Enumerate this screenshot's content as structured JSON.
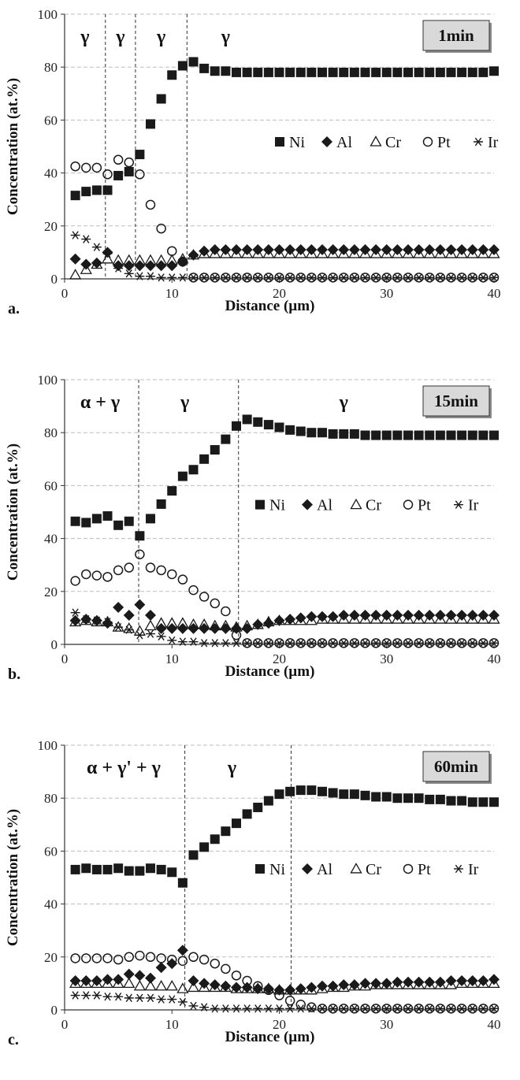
{
  "figure": {
    "series_names": [
      "Ni",
      "Al",
      "Cr",
      "Pt",
      "Ir"
    ],
    "colors": {
      "marker": "#1a1a1a",
      "grid": "#bdbdbd",
      "badge_fill": "#d9d9d9"
    }
  },
  "chart_data": [
    {
      "type": "scatter",
      "panel_label": "a.",
      "badge": "1min",
      "xlabel": "Distance (µm)",
      "ylabel": "Concentration (at.%)",
      "xlim": [
        0,
        40
      ],
      "ylim": [
        0,
        100
      ],
      "xticks": [
        0,
        10,
        20,
        30,
        40
      ],
      "yticks": [
        0,
        20,
        40,
        60,
        80,
        100
      ],
      "grid": "horizontal dashed",
      "legend_position": "right-middle",
      "boundaries": [
        3.8,
        6.6,
        11.4
      ],
      "phase_labels": [
        {
          "text": "γ",
          "x": 1.9
        },
        {
          "text": "γ",
          "x": 5.2
        },
        {
          "text": "γ",
          "x": 9.0
        },
        {
          "text": "γ",
          "x": 15.0
        }
      ],
      "x": [
        1,
        2,
        3,
        4,
        5,
        6,
        7,
        8,
        9,
        10,
        11,
        12,
        13,
        14,
        15,
        16,
        17,
        18,
        19,
        20,
        21,
        22,
        23,
        24,
        25,
        26,
        27,
        28,
        29,
        30,
        31,
        32,
        33,
        34,
        35,
        36,
        37,
        38,
        39,
        40
      ],
      "series": [
        {
          "name": "Ni",
          "marker": "square",
          "values": [
            31.5,
            33,
            33.5,
            33.5,
            39,
            40.5,
            47,
            58.5,
            68,
            77,
            80.5,
            82,
            79.5,
            78.5,
            78.5,
            78,
            78,
            78,
            78,
            78,
            78,
            78,
            78,
            78,
            78,
            78,
            78,
            78,
            78,
            78,
            78,
            78,
            78,
            78,
            78,
            78,
            78,
            78,
            78,
            78.5
          ]
        },
        {
          "name": "Al",
          "marker": "diamond",
          "values": [
            7.5,
            5.5,
            6,
            10,
            5,
            5,
            5,
            5,
            5,
            5,
            6.5,
            9,
            10.5,
            11,
            11,
            11,
            11,
            11,
            11,
            11,
            11,
            11,
            11,
            11,
            11,
            11,
            11,
            11,
            11,
            11,
            11,
            11,
            11,
            11,
            11,
            11,
            11,
            11,
            11,
            11
          ]
        },
        {
          "name": "Cr",
          "marker": "triangle",
          "values": [
            1.5,
            3.5,
            5.5,
            7.5,
            7,
            7,
            7,
            7,
            7,
            7,
            7.5,
            9,
            9.5,
            9.5,
            9.5,
            9.5,
            9.5,
            9.5,
            9.5,
            9.5,
            9.5,
            9.5,
            9.5,
            9.5,
            9.5,
            9.5,
            9.5,
            9.5,
            9.5,
            9.5,
            9.5,
            9.5,
            9.5,
            9.5,
            9.5,
            9.5,
            9.5,
            9.5,
            9.5,
            9.5
          ]
        },
        {
          "name": "Pt",
          "marker": "circle",
          "values": [
            42.5,
            42,
            42,
            39.5,
            45,
            44,
            39.5,
            28,
            19,
            10.5,
            6.5,
            0.5,
            0.5,
            0.5,
            0.5,
            0.5,
            0.5,
            0.5,
            0.5,
            0.5,
            0.5,
            0.5,
            0.5,
            0.5,
            0.5,
            0.5,
            0.5,
            0.5,
            0.5,
            0.5,
            0.5,
            0.5,
            0.5,
            0.5,
            0.5,
            0.5,
            0.5,
            0.5,
            0.5,
            0.5
          ]
        },
        {
          "name": "Ir",
          "marker": "star",
          "values": [
            16.5,
            15,
            12,
            9.5,
            4,
            2,
            1,
            1,
            0.5,
            0.5,
            0.5,
            0.5,
            0.5,
            0.5,
            0.5,
            0.5,
            0.5,
            0.5,
            0.5,
            0.5,
            0.5,
            0.5,
            0.5,
            0.5,
            0.5,
            0.5,
            0.5,
            0.5,
            0.5,
            0.5,
            0.5,
            0.5,
            0.5,
            0.5,
            0.5,
            0.5,
            0.5,
            0.5,
            0.5,
            0.5
          ]
        }
      ]
    },
    {
      "type": "scatter",
      "panel_label": "b.",
      "badge": "15min",
      "xlabel": "Distance (µm)",
      "ylabel": "Concentration (at.%)",
      "xlim": [
        0,
        40
      ],
      "ylim": [
        0,
        100
      ],
      "xticks": [
        0,
        10,
        20,
        30,
        40
      ],
      "yticks": [
        0,
        20,
        40,
        60,
        80,
        100
      ],
      "grid": "horizontal dashed",
      "legend_position": "right-middle",
      "boundaries": [
        6.9,
        16.2
      ],
      "phase_labels": [
        {
          "text": "α + γ",
          "x": 3.3
        },
        {
          "text": "γ",
          "x": 11.2
        },
        {
          "text": "γ",
          "x": 26.0
        }
      ],
      "x": [
        1,
        2,
        3,
        4,
        5,
        6,
        7,
        8,
        9,
        10,
        11,
        12,
        13,
        14,
        15,
        16,
        17,
        18,
        19,
        20,
        21,
        22,
        23,
        24,
        25,
        26,
        27,
        28,
        29,
        30,
        31,
        32,
        33,
        34,
        35,
        36,
        37,
        38,
        39,
        40
      ],
      "series": [
        {
          "name": "Ni",
          "marker": "square",
          "values": [
            46.5,
            46,
            47.5,
            48.5,
            45,
            46.5,
            41,
            47.5,
            53,
            58,
            63.5,
            66,
            70,
            73.5,
            77.5,
            82.5,
            85,
            84,
            83,
            82,
            81,
            80.5,
            80,
            80,
            79.5,
            79.5,
            79.5,
            79,
            79,
            79,
            79,
            79,
            79,
            79,
            79,
            79,
            79,
            79,
            79,
            79
          ]
        },
        {
          "name": "Al",
          "marker": "diamond",
          "values": [
            9,
            9.5,
            9,
            8,
            14,
            11,
            15,
            11,
            6,
            6,
            6,
            6,
            6,
            6,
            6,
            6,
            6,
            7.5,
            8,
            9,
            9.5,
            10,
            10.5,
            10.5,
            10.5,
            11,
            11,
            11,
            11,
            11,
            11,
            11,
            11,
            11,
            11,
            11,
            11,
            11,
            11,
            11
          ]
        },
        {
          "name": "Cr",
          "marker": "triangle",
          "values": [
            8.5,
            9,
            8.5,
            8.5,
            6.5,
            6,
            5,
            7,
            8,
            8,
            8,
            7.5,
            7.5,
            7,
            7,
            6.5,
            7,
            7.5,
            8.5,
            9,
            9,
            9,
            9,
            9.5,
            9.5,
            9.5,
            9.5,
            9.5,
            9.5,
            9.5,
            9.5,
            9.5,
            9.5,
            9.5,
            9.5,
            9.5,
            9.5,
            9.5,
            9.5,
            9.5
          ]
        },
        {
          "name": "Pt",
          "marker": "circle",
          "values": [
            24,
            26.5,
            26,
            25.5,
            28,
            29,
            34,
            29,
            28,
            26.5,
            24.5,
            20.5,
            18,
            15.5,
            12.5,
            3.5,
            0.5,
            0.5,
            0.5,
            0.5,
            0.5,
            0.5,
            0.5,
            0.5,
            0.5,
            0.5,
            0.5,
            0.5,
            0.5,
            0.5,
            0.5,
            0.5,
            0.5,
            0.5,
            0.5,
            0.5,
            0.5,
            0.5,
            0.5,
            0.5
          ]
        },
        {
          "name": "Ir",
          "marker": "star",
          "values": [
            12,
            9.5,
            9,
            8.5,
            6.5,
            5.5,
            3.5,
            4,
            3,
            1.5,
            1,
            1,
            0.5,
            0.5,
            0.5,
            0.5,
            0.5,
            0.5,
            0.5,
            0.5,
            0.5,
            0.5,
            0.5,
            0.5,
            0.5,
            0.5,
            0.5,
            0.5,
            0.5,
            0.5,
            0.5,
            0.5,
            0.5,
            0.5,
            0.5,
            0.5,
            0.5,
            0.5,
            0.5,
            0.5
          ]
        }
      ]
    },
    {
      "type": "scatter",
      "panel_label": "c.",
      "badge": "60min",
      "xlabel": "Distance (µm)",
      "ylabel": "Concentration (at.%)",
      "xlim": [
        0,
        40
      ],
      "ylim": [
        0,
        100
      ],
      "xticks": [
        0,
        10,
        20,
        30,
        40
      ],
      "yticks": [
        0,
        20,
        40,
        60,
        80,
        100
      ],
      "grid": "horizontal dashed",
      "legend_position": "right-middle",
      "boundaries": [
        11.2,
        21.1
      ],
      "phase_labels": [
        {
          "text": "α + γ' + γ",
          "x": 5.5
        },
        {
          "text": "γ",
          "x": 15.6
        }
      ],
      "x": [
        1,
        2,
        3,
        4,
        5,
        6,
        7,
        8,
        9,
        10,
        11,
        12,
        13,
        14,
        15,
        16,
        17,
        18,
        19,
        20,
        21,
        22,
        23,
        24,
        25,
        26,
        27,
        28,
        29,
        30,
        31,
        32,
        33,
        34,
        35,
        36,
        37,
        38,
        39,
        40
      ],
      "series": [
        {
          "name": "Ni",
          "marker": "square",
          "values": [
            53,
            53.5,
            53,
            53,
            53.5,
            52.5,
            52.5,
            53.5,
            53,
            52,
            48,
            58.5,
            61.5,
            64.5,
            67.5,
            70.5,
            74,
            76.5,
            79,
            81.5,
            82.5,
            83,
            83,
            82.5,
            82,
            81.5,
            81.5,
            81,
            80.5,
            80.5,
            80,
            80,
            80,
            79.5,
            79.5,
            79,
            79,
            78.5,
            78.5,
            78.5
          ]
        },
        {
          "name": "Al",
          "marker": "diamond",
          "values": [
            11,
            11,
            11,
            11.5,
            11.5,
            13.5,
            13,
            12,
            16,
            17.5,
            22.5,
            11,
            10,
            9.5,
            9,
            8.5,
            8.5,
            8,
            8,
            7.5,
            7.5,
            8,
            8.5,
            9,
            9,
            9.5,
            9.5,
            10,
            10,
            10,
            10.5,
            10.5,
            10.5,
            10.5,
            10.5,
            11,
            11,
            11,
            11,
            11.5
          ]
        },
        {
          "name": "Cr",
          "marker": "triangle",
          "values": [
            10,
            10,
            10,
            10,
            10,
            10,
            9,
            9,
            9,
            9,
            8,
            8.5,
            8.5,
            8.5,
            8.5,
            8,
            8,
            8,
            8,
            7.5,
            7.5,
            7.5,
            7.5,
            8,
            8.5,
            8.5,
            9,
            9,
            9.5,
            9.5,
            9.5,
            9.5,
            9.5,
            9.5,
            9.5,
            9.5,
            10,
            10,
            10,
            10
          ]
        },
        {
          "name": "Pt",
          "marker": "circle",
          "values": [
            19.5,
            19.5,
            19.5,
            19.5,
            19,
            20,
            20.5,
            20,
            19.5,
            19,
            18.5,
            20,
            19,
            17.5,
            15.5,
            13,
            11,
            9,
            7.5,
            5.5,
            3.5,
            2,
            1,
            0.5,
            0.5,
            0.5,
            0.5,
            0.5,
            0.5,
            0.5,
            0.5,
            0.5,
            0.5,
            0.5,
            0.5,
            0.5,
            0.5,
            0.5,
            0.5,
            0.5
          ]
        },
        {
          "name": "Ir",
          "marker": "star",
          "values": [
            5.5,
            5.5,
            5.5,
            5,
            5,
            4.5,
            4.5,
            4.5,
            4,
            4,
            3,
            1.5,
            1,
            0.5,
            0.5,
            0.5,
            0.5,
            0.5,
            0.5,
            0.5,
            0.5,
            0.5,
            0.5,
            0.5,
            0.5,
            0.5,
            0.5,
            0.5,
            0.5,
            0.5,
            0.5,
            0.5,
            0.5,
            0.5,
            0.5,
            0.5,
            0.5,
            0.5,
            0.5,
            0.5
          ]
        }
      ]
    }
  ]
}
